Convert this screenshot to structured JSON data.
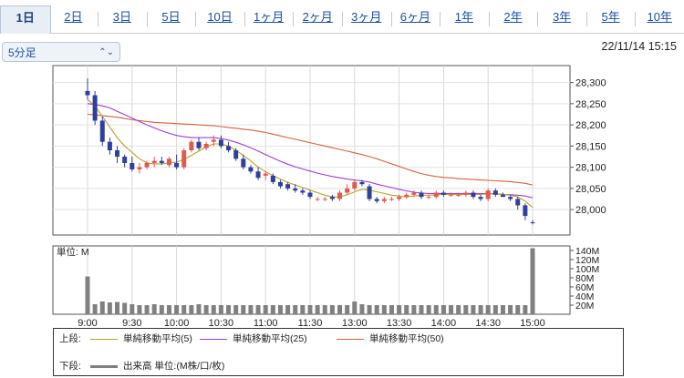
{
  "period_tabs": [
    "1日",
    "2日",
    "3日",
    "5日",
    "10日",
    "1ヶ月",
    "2ヶ月",
    "3ヶ月",
    "6ヶ月",
    "1年",
    "2年",
    "3年",
    "5年",
    "10年"
  ],
  "active_tab": "1日",
  "interval_select": {
    "value": "5分足"
  },
  "timestamp": "22/11/14 15:15",
  "volume_unit_label": "単位: M",
  "legend": {
    "upper_label": "上段:",
    "lower_label": "下段:",
    "ma5": "単純移動平均(5)",
    "ma25": "単純移動平均(25)",
    "ma50": "単純移動平均(50)",
    "volume": "出来高 単位:(M株/口/枚)"
  },
  "colors": {
    "up": "#e05a4e",
    "down": "#2f3f9c",
    "ma5": "#b9a12b",
    "ma25": "#9b3fd6",
    "ma50": "#d0643a",
    "volume": "#808080"
  },
  "chart_data": [
    {
      "type": "candlestick",
      "title": "",
      "ylim": [
        27940,
        28340
      ],
      "y_ticks": [
        "28,000",
        "28,050",
        "28,100",
        "28,150",
        "28,200",
        "28,250",
        "28,300"
      ],
      "y_tick_values": [
        28000,
        28050,
        28100,
        28150,
        28200,
        28250,
        28300
      ],
      "x_tick_labels": [
        "9:00",
        "9:30",
        "10:00",
        "10:30",
        "11:00",
        "11:30",
        "13:00",
        "13:30",
        "14:00",
        "14:30",
        "15:00"
      ],
      "candles": [
        [
          28280,
          28310,
          28260,
          28270
        ],
        [
          28270,
          28280,
          28200,
          28210
        ],
        [
          28210,
          28220,
          28150,
          28160
        ],
        [
          28160,
          28170,
          28130,
          28140
        ],
        [
          28140,
          28150,
          28110,
          28125
        ],
        [
          28125,
          28130,
          28100,
          28110
        ],
        [
          28110,
          28125,
          28090,
          28095
        ],
        [
          28095,
          28110,
          28085,
          28100
        ],
        [
          28100,
          28115,
          28095,
          28110
        ],
        [
          28110,
          28125,
          28100,
          28115
        ],
        [
          28115,
          28125,
          28105,
          28110
        ],
        [
          28105,
          28125,
          28100,
          28120
        ],
        [
          28110,
          28130,
          28095,
          28100
        ],
        [
          28100,
          28145,
          28095,
          28140
        ],
        [
          28140,
          28165,
          28135,
          28160
        ],
        [
          28160,
          28170,
          28140,
          28145
        ],
        [
          28145,
          28160,
          28140,
          28155
        ],
        [
          28160,
          28175,
          28150,
          28165
        ],
        [
          28165,
          28175,
          28145,
          28150
        ],
        [
          28150,
          28160,
          28135,
          28140
        ],
        [
          28140,
          28145,
          28115,
          28120
        ],
        [
          28120,
          28130,
          28095,
          28100
        ],
        [
          28100,
          28105,
          28085,
          28090
        ],
        [
          28090,
          28100,
          28070,
          28075
        ],
        [
          28080,
          28090,
          28070,
          28085
        ],
        [
          28080,
          28085,
          28060,
          28065
        ],
        [
          28065,
          28070,
          28050,
          28055
        ],
        [
          28060,
          28065,
          28045,
          28050
        ],
        [
          28050,
          28060,
          28040,
          28045
        ],
        [
          28045,
          28050,
          28035,
          28040
        ],
        [
          28040,
          28045,
          28025,
          28030
        ],
        [
          28025,
          28030,
          28020,
          28025
        ],
        [
          28025,
          28030,
          28020,
          28025
        ],
        [
          28030,
          28035,
          28020,
          28025
        ],
        [
          28025,
          28045,
          28020,
          28040
        ],
        [
          28040,
          28060,
          28035,
          28050
        ],
        [
          28050,
          28070,
          28045,
          28065
        ],
        [
          28065,
          28070,
          28055,
          28060
        ],
        [
          28055,
          28060,
          28020,
          28025
        ],
        [
          28025,
          28030,
          28015,
          28020
        ],
        [
          28020,
          28030,
          28015,
          28025
        ],
        [
          28025,
          28030,
          28020,
          28025
        ],
        [
          28025,
          28035,
          28020,
          28030
        ],
        [
          28030,
          28040,
          28025,
          28035
        ],
        [
          28035,
          28045,
          28030,
          28040
        ],
        [
          28040,
          28045,
          28025,
          28030
        ],
        [
          28030,
          28035,
          28025,
          28030
        ],
        [
          28030,
          28045,
          28025,
          28040
        ],
        [
          28040,
          28045,
          28030,
          28035
        ],
        [
          28035,
          28040,
          28030,
          28035
        ],
        [
          28035,
          28040,
          28030,
          28035
        ],
        [
          28035,
          28045,
          28030,
          28040
        ],
        [
          28040,
          28045,
          28025,
          28030
        ],
        [
          28030,
          28035,
          28020,
          28025
        ],
        [
          28025,
          28050,
          28020,
          28045
        ],
        [
          28045,
          28050,
          28030,
          28035
        ],
        [
          28035,
          28040,
          28030,
          28030
        ],
        [
          28030,
          28035,
          28020,
          28025
        ],
        [
          28025,
          28030,
          28000,
          28010
        ],
        [
          28010,
          28015,
          27975,
          27985
        ],
        [
          27970,
          27975,
          27965,
          27968
        ]
      ],
      "ma5": [
        28260,
        28245,
        28220,
        28195,
        28170,
        28150,
        28135,
        28120,
        28110,
        28108,
        28108,
        28110,
        28112,
        28118,
        28128,
        28138,
        28148,
        28155,
        28155,
        28150,
        28140,
        28128,
        28115,
        28100,
        28090,
        28080,
        28072,
        28064,
        28058,
        28052,
        28046,
        28040,
        28034,
        28030,
        28030,
        28035,
        28042,
        28048,
        28046,
        28042,
        28038,
        28034,
        28032,
        28030,
        28032,
        28034,
        28034,
        28035,
        28036,
        28036,
        28036,
        28036,
        28036,
        28036,
        28037,
        28038,
        28036,
        28034,
        28030,
        28020,
        28005
      ],
      "ma25": [
        28250,
        28248,
        28245,
        28240,
        28232,
        28224,
        28216,
        28208,
        28200,
        28193,
        28186,
        28180,
        28175,
        28172,
        28170,
        28170,
        28170,
        28170,
        28168,
        28164,
        28159,
        28153,
        28146,
        28138,
        28130,
        28122,
        28114,
        28107,
        28101,
        28096,
        28091,
        28086,
        28082,
        28078,
        28075,
        28072,
        28070,
        28068,
        28065,
        28060,
        28056,
        28052,
        28048,
        28044,
        28041,
        28039,
        28038,
        28038,
        28038,
        28038,
        28038,
        28038,
        28038,
        28038,
        28038,
        28037,
        28036,
        28035,
        28034,
        28032,
        28028
      ],
      "ma50": [
        28225,
        28224,
        28222,
        28220,
        28218,
        28215,
        28212,
        28210,
        28208,
        28206,
        28205,
        28204,
        28203,
        28202,
        28201,
        28200,
        28199,
        28198,
        28196,
        28194,
        28192,
        28190,
        28188,
        28185,
        28182,
        28178,
        28174,
        28170,
        28166,
        28162,
        28158,
        28154,
        28150,
        28146,
        28142,
        28138,
        28134,
        28130,
        28125,
        28120,
        28114,
        28108,
        28102,
        28096,
        28090,
        28085,
        28081,
        28078,
        28076,
        28075,
        28073,
        28072,
        28071,
        28070,
        28069,
        28068,
        28067,
        28066,
        28064,
        28062,
        28058
      ]
    },
    {
      "type": "bar",
      "title": "",
      "ylabel": "単位: M",
      "ylim": [
        0,
        150
      ],
      "y_ticks": [
        "20M",
        "40M",
        "60M",
        "80M",
        "100M",
        "120M",
        "140M"
      ],
      "y_tick_values": [
        20,
        40,
        60,
        80,
        100,
        120,
        140
      ],
      "volume": [
        83,
        22,
        28,
        26,
        27,
        25,
        22,
        20,
        20,
        22,
        20,
        20,
        20,
        20,
        20,
        22,
        20,
        20,
        20,
        20,
        20,
        20,
        20,
        20,
        20,
        20,
        20,
        20,
        20,
        20,
        20,
        20,
        20,
        20,
        20,
        20,
        28,
        22,
        20,
        20,
        20,
        20,
        20,
        20,
        20,
        20,
        20,
        20,
        20,
        20,
        20,
        20,
        20,
        20,
        20,
        20,
        20,
        20,
        20,
        20,
        145
      ]
    }
  ]
}
